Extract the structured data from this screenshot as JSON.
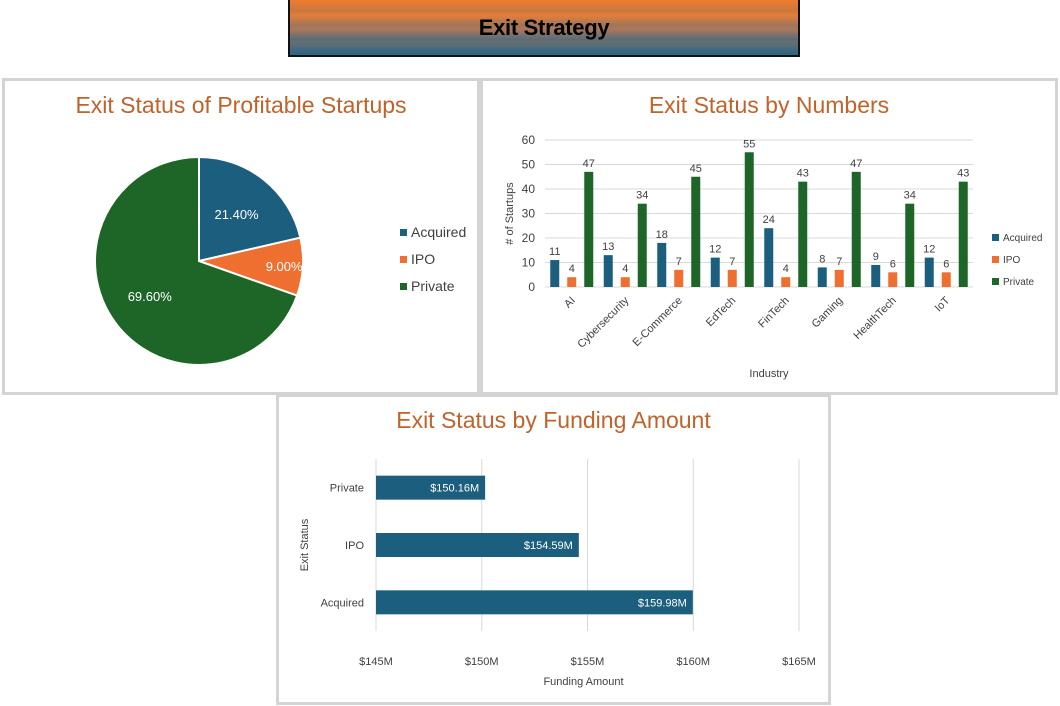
{
  "header": {
    "title": "Exit Strategy"
  },
  "colors": {
    "acquired": "#1b5e7e",
    "ipo": "#ee6f2f",
    "private": "#1e6628",
    "title": "#c0622a"
  },
  "chart_data": [
    {
      "type": "pie",
      "title": "Exit Status of Profitable Startups",
      "labels": [
        "Acquired",
        "IPO",
        "Private"
      ],
      "values": [
        21.4,
        9.0,
        69.6
      ],
      "value_labels": [
        "21.40%",
        "9.00%",
        "69.60%"
      ],
      "legend": "right"
    },
    {
      "type": "bar",
      "title": "Exit Status by Numbers",
      "categories": [
        "AI",
        "Cybersecurity",
        "E-Commerce",
        "EdTech",
        "FinTech",
        "Gaming",
        "HealthTech",
        "IoT"
      ],
      "series": [
        {
          "name": "Acquired",
          "values": [
            11,
            13,
            18,
            12,
            24,
            8,
            9,
            12
          ]
        },
        {
          "name": "IPO",
          "values": [
            4,
            4,
            7,
            7,
            4,
            7,
            6,
            6
          ]
        },
        {
          "name": "Private",
          "values": [
            47,
            34,
            45,
            55,
            43,
            47,
            34,
            43
          ]
        }
      ],
      "xlabel": "Industry",
      "ylabel": "# of Startups",
      "ylim": [
        0,
        60
      ],
      "yticks": [
        "0",
        "10",
        "20",
        "30",
        "40",
        "50",
        "60"
      ],
      "legend": "right",
      "grid": true
    },
    {
      "type": "bar",
      "orientation": "horizontal",
      "title": "Exit Status by Funding Amount",
      "categories": [
        "Private",
        "IPO",
        "Acquired"
      ],
      "values": [
        150.16,
        154.59,
        159.98
      ],
      "value_labels": [
        "$150.16M",
        "$154.59M",
        "$159.98M"
      ],
      "xlabel": "Funding Amount",
      "ylabel": "Exit Status",
      "xlim": [
        145,
        165
      ],
      "xticks": [
        "$145M",
        "$150M",
        "$155M",
        "$160M",
        "$165M"
      ],
      "grid": true
    }
  ]
}
